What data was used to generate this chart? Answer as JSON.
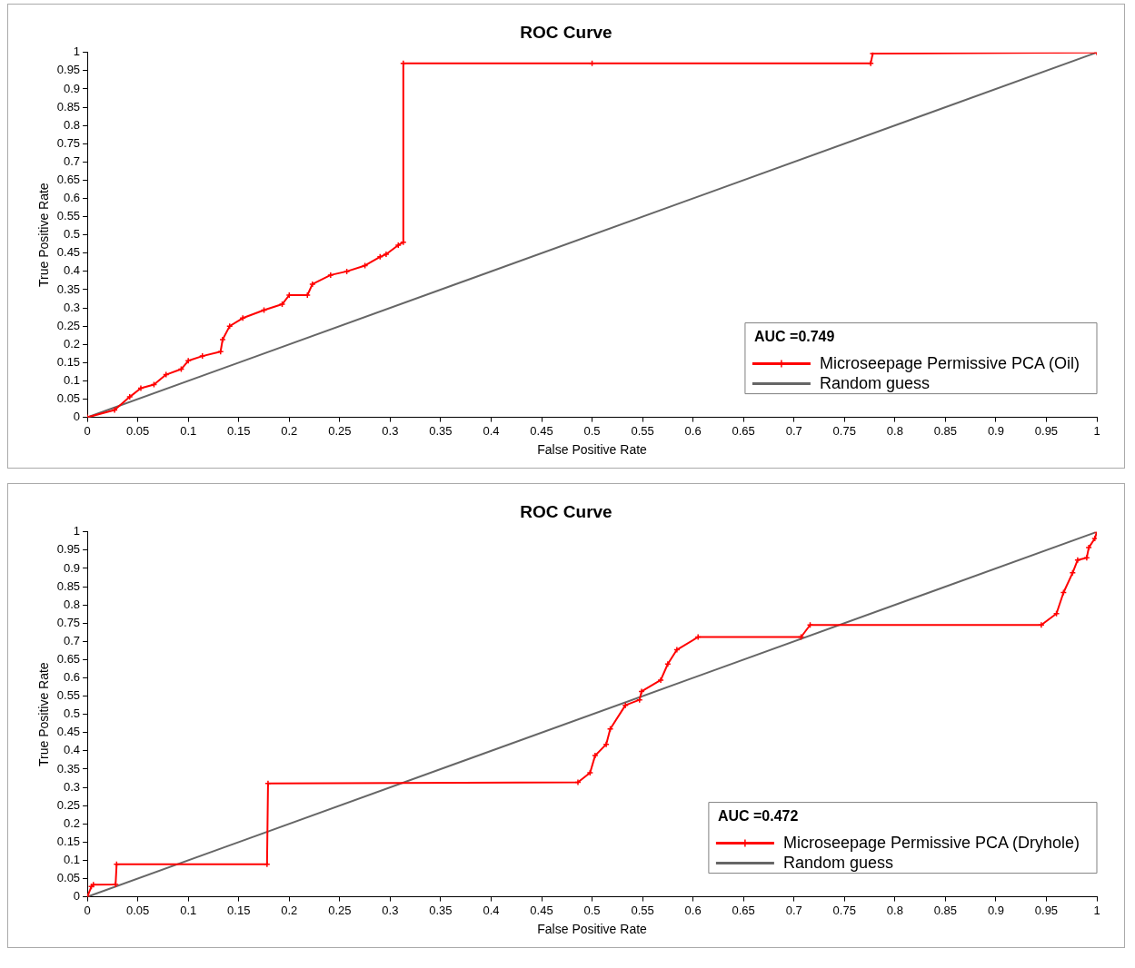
{
  "chart_data": [
    {
      "type": "line",
      "title": "ROC Curve",
      "xlabel": "False Positive Rate",
      "ylabel": "True Positive Rate",
      "legend_title": "AUC =0.749",
      "legend": "bottom right",
      "grid": false,
      "xlim": [
        0,
        1
      ],
      "ylim": [
        0,
        1
      ],
      "xticks": [
        0,
        0.05,
        0.1,
        0.15,
        0.2,
        0.25,
        0.3,
        0.35,
        0.4,
        0.45,
        0.5,
        0.55,
        0.6,
        0.65,
        0.7,
        0.75,
        0.8,
        0.85,
        0.9,
        0.95,
        1
      ],
      "yticks": [
        0,
        0.05,
        0.1,
        0.15,
        0.2,
        0.25,
        0.3,
        0.35,
        0.4,
        0.45,
        0.5,
        0.55,
        0.6,
        0.65,
        0.7,
        0.75,
        0.8,
        0.85,
        0.9,
        0.95,
        1
      ],
      "series": [
        {
          "name": "Microseepage Permissive PCA (Oil)",
          "color": "#ff0000",
          "marker": "cross",
          "line_style": "solid",
          "x": [
            0,
            0.027,
            0.042,
            0.053,
            0.066,
            0.078,
            0.093,
            0.1,
            0.114,
            0.132,
            0.134,
            0.141,
            0.154,
            0.175,
            0.193,
            0.2,
            0.218,
            0.223,
            0.241,
            0.257,
            0.275,
            0.29,
            0.296,
            0.308,
            0.313,
            0.313,
            0.5,
            0.776,
            0.778,
            1
          ],
          "values": [
            0,
            0.02,
            0.056,
            0.08,
            0.09,
            0.117,
            0.132,
            0.155,
            0.168,
            0.18,
            0.213,
            0.25,
            0.272,
            0.294,
            0.31,
            0.335,
            0.335,
            0.365,
            0.39,
            0.4,
            0.416,
            0.44,
            0.447,
            0.472,
            0.48,
            0.97,
            0.97,
            0.97,
            0.997,
            1
          ]
        },
        {
          "name": "Random guess",
          "color": "#666666",
          "marker": "none",
          "line_style": "solid",
          "x": [
            0,
            1
          ],
          "values": [
            0,
            1
          ]
        }
      ]
    },
    {
      "type": "line",
      "title": "ROC Curve",
      "xlabel": "False Positive Rate",
      "ylabel": "True Positive Rate",
      "legend_title": "AUC =0.472",
      "legend": "bottom right",
      "grid": false,
      "xlim": [
        0,
        1
      ],
      "ylim": [
        0,
        1
      ],
      "xticks": [
        0,
        0.05,
        0.1,
        0.15,
        0.2,
        0.25,
        0.3,
        0.35,
        0.4,
        0.45,
        0.5,
        0.55,
        0.6,
        0.65,
        0.7,
        0.75,
        0.8,
        0.85,
        0.9,
        0.95,
        1
      ],
      "yticks": [
        0,
        0.05,
        0.1,
        0.15,
        0.2,
        0.25,
        0.3,
        0.35,
        0.4,
        0.45,
        0.5,
        0.55,
        0.6,
        0.65,
        0.7,
        0.75,
        0.8,
        0.85,
        0.9,
        0.95,
        1
      ],
      "series": [
        {
          "name": "Microseepage Permissive PCA (Dryhole)",
          "color": "#ff0000",
          "marker": "cross",
          "line_style": "solid",
          "x": [
            0,
            0.004,
            0.006,
            0.028,
            0.029,
            0.178,
            0.179,
            0.486,
            0.498,
            0.503,
            0.514,
            0.518,
            0.533,
            0.547,
            0.549,
            0.568,
            0.575,
            0.584,
            0.605,
            0.707,
            0.716,
            0.945,
            0.96,
            0.967,
            0.976,
            0.981,
            0.99,
            0.992,
            0.998,
            1
          ],
          "values": [
            0,
            0.028,
            0.033,
            0.034,
            0.089,
            0.089,
            0.311,
            0.314,
            0.34,
            0.387,
            0.418,
            0.46,
            0.525,
            0.54,
            0.563,
            0.594,
            0.638,
            0.677,
            0.712,
            0.712,
            0.745,
            0.745,
            0.776,
            0.834,
            0.888,
            0.923,
            0.929,
            0.957,
            0.982,
            1
          ]
        },
        {
          "name": "Random guess",
          "color": "#666666",
          "marker": "none",
          "line_style": "solid",
          "x": [
            0,
            1
          ],
          "values": [
            0,
            1
          ]
        }
      ]
    }
  ]
}
